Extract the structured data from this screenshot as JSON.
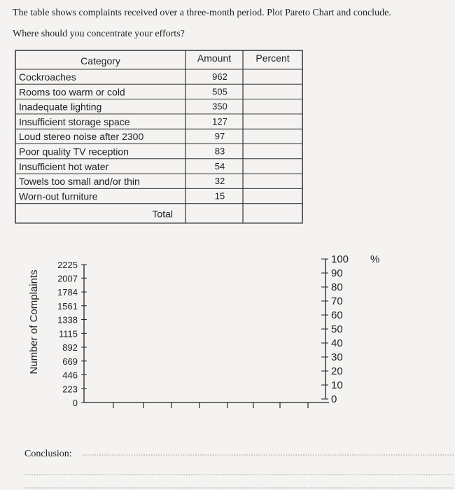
{
  "question": [
    "The table shows complaints received over a three-month period. Plot Pareto Chart and conclude.",
    "Where should you concentrate your efforts?"
  ],
  "table": {
    "headers": [
      "Category",
      "Amount",
      "Percent"
    ],
    "rows": [
      [
        "Cockroaches",
        "962"
      ],
      [
        "Rooms too warm or cold",
        "505"
      ],
      [
        "Inadequate lighting",
        "350"
      ],
      [
        "Insufficient storage space",
        "127"
      ],
      [
        "Loud stereo noise after 2300",
        "97"
      ],
      [
        "Poor quality TV reception",
        "83"
      ],
      [
        "Insufficient hot water",
        "54"
      ],
      [
        "Towels too small and/or thin",
        "32"
      ],
      [
        "Worn-out furniture",
        "15"
      ]
    ],
    "total": "Total"
  },
  "axes": {
    "ylabel": "Number of Complaints",
    "yticks": [
      0,
      223,
      446,
      669,
      892,
      1115,
      1338,
      1561,
      1784,
      2007,
      2225
    ],
    "y2ticks": [
      0,
      10,
      20,
      30,
      40,
      50,
      60,
      70,
      80,
      90,
      100
    ],
    "y2unit": "%"
  },
  "conclusion": "Conclusion:"
}
